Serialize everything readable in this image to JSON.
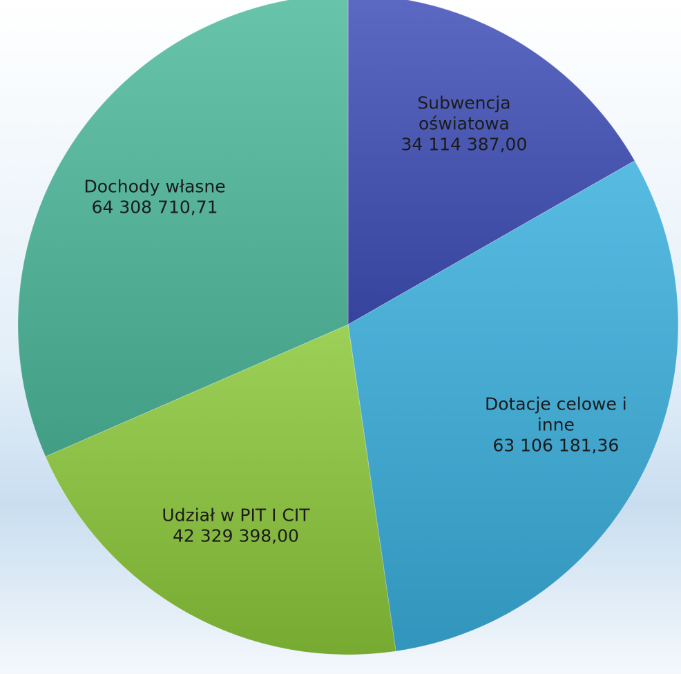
{
  "chart_data": {
    "type": "pie",
    "categories": [
      "Subwencja oświatowa",
      "Dotacje celowe i inne",
      "Udział w PIT I CIT",
      "Dochody własne"
    ],
    "values": [
      34114387.0,
      63106181.36,
      42329398.0,
      64308710.71
    ],
    "value_labels": [
      "34 114 387,00",
      "63 106 181,36",
      "42 329 398,00",
      "64 308 710,71"
    ],
    "colors": [
      "#3f4fb8",
      "#3aafdd",
      "#8cc83a",
      "#4dba9c"
    ]
  }
}
